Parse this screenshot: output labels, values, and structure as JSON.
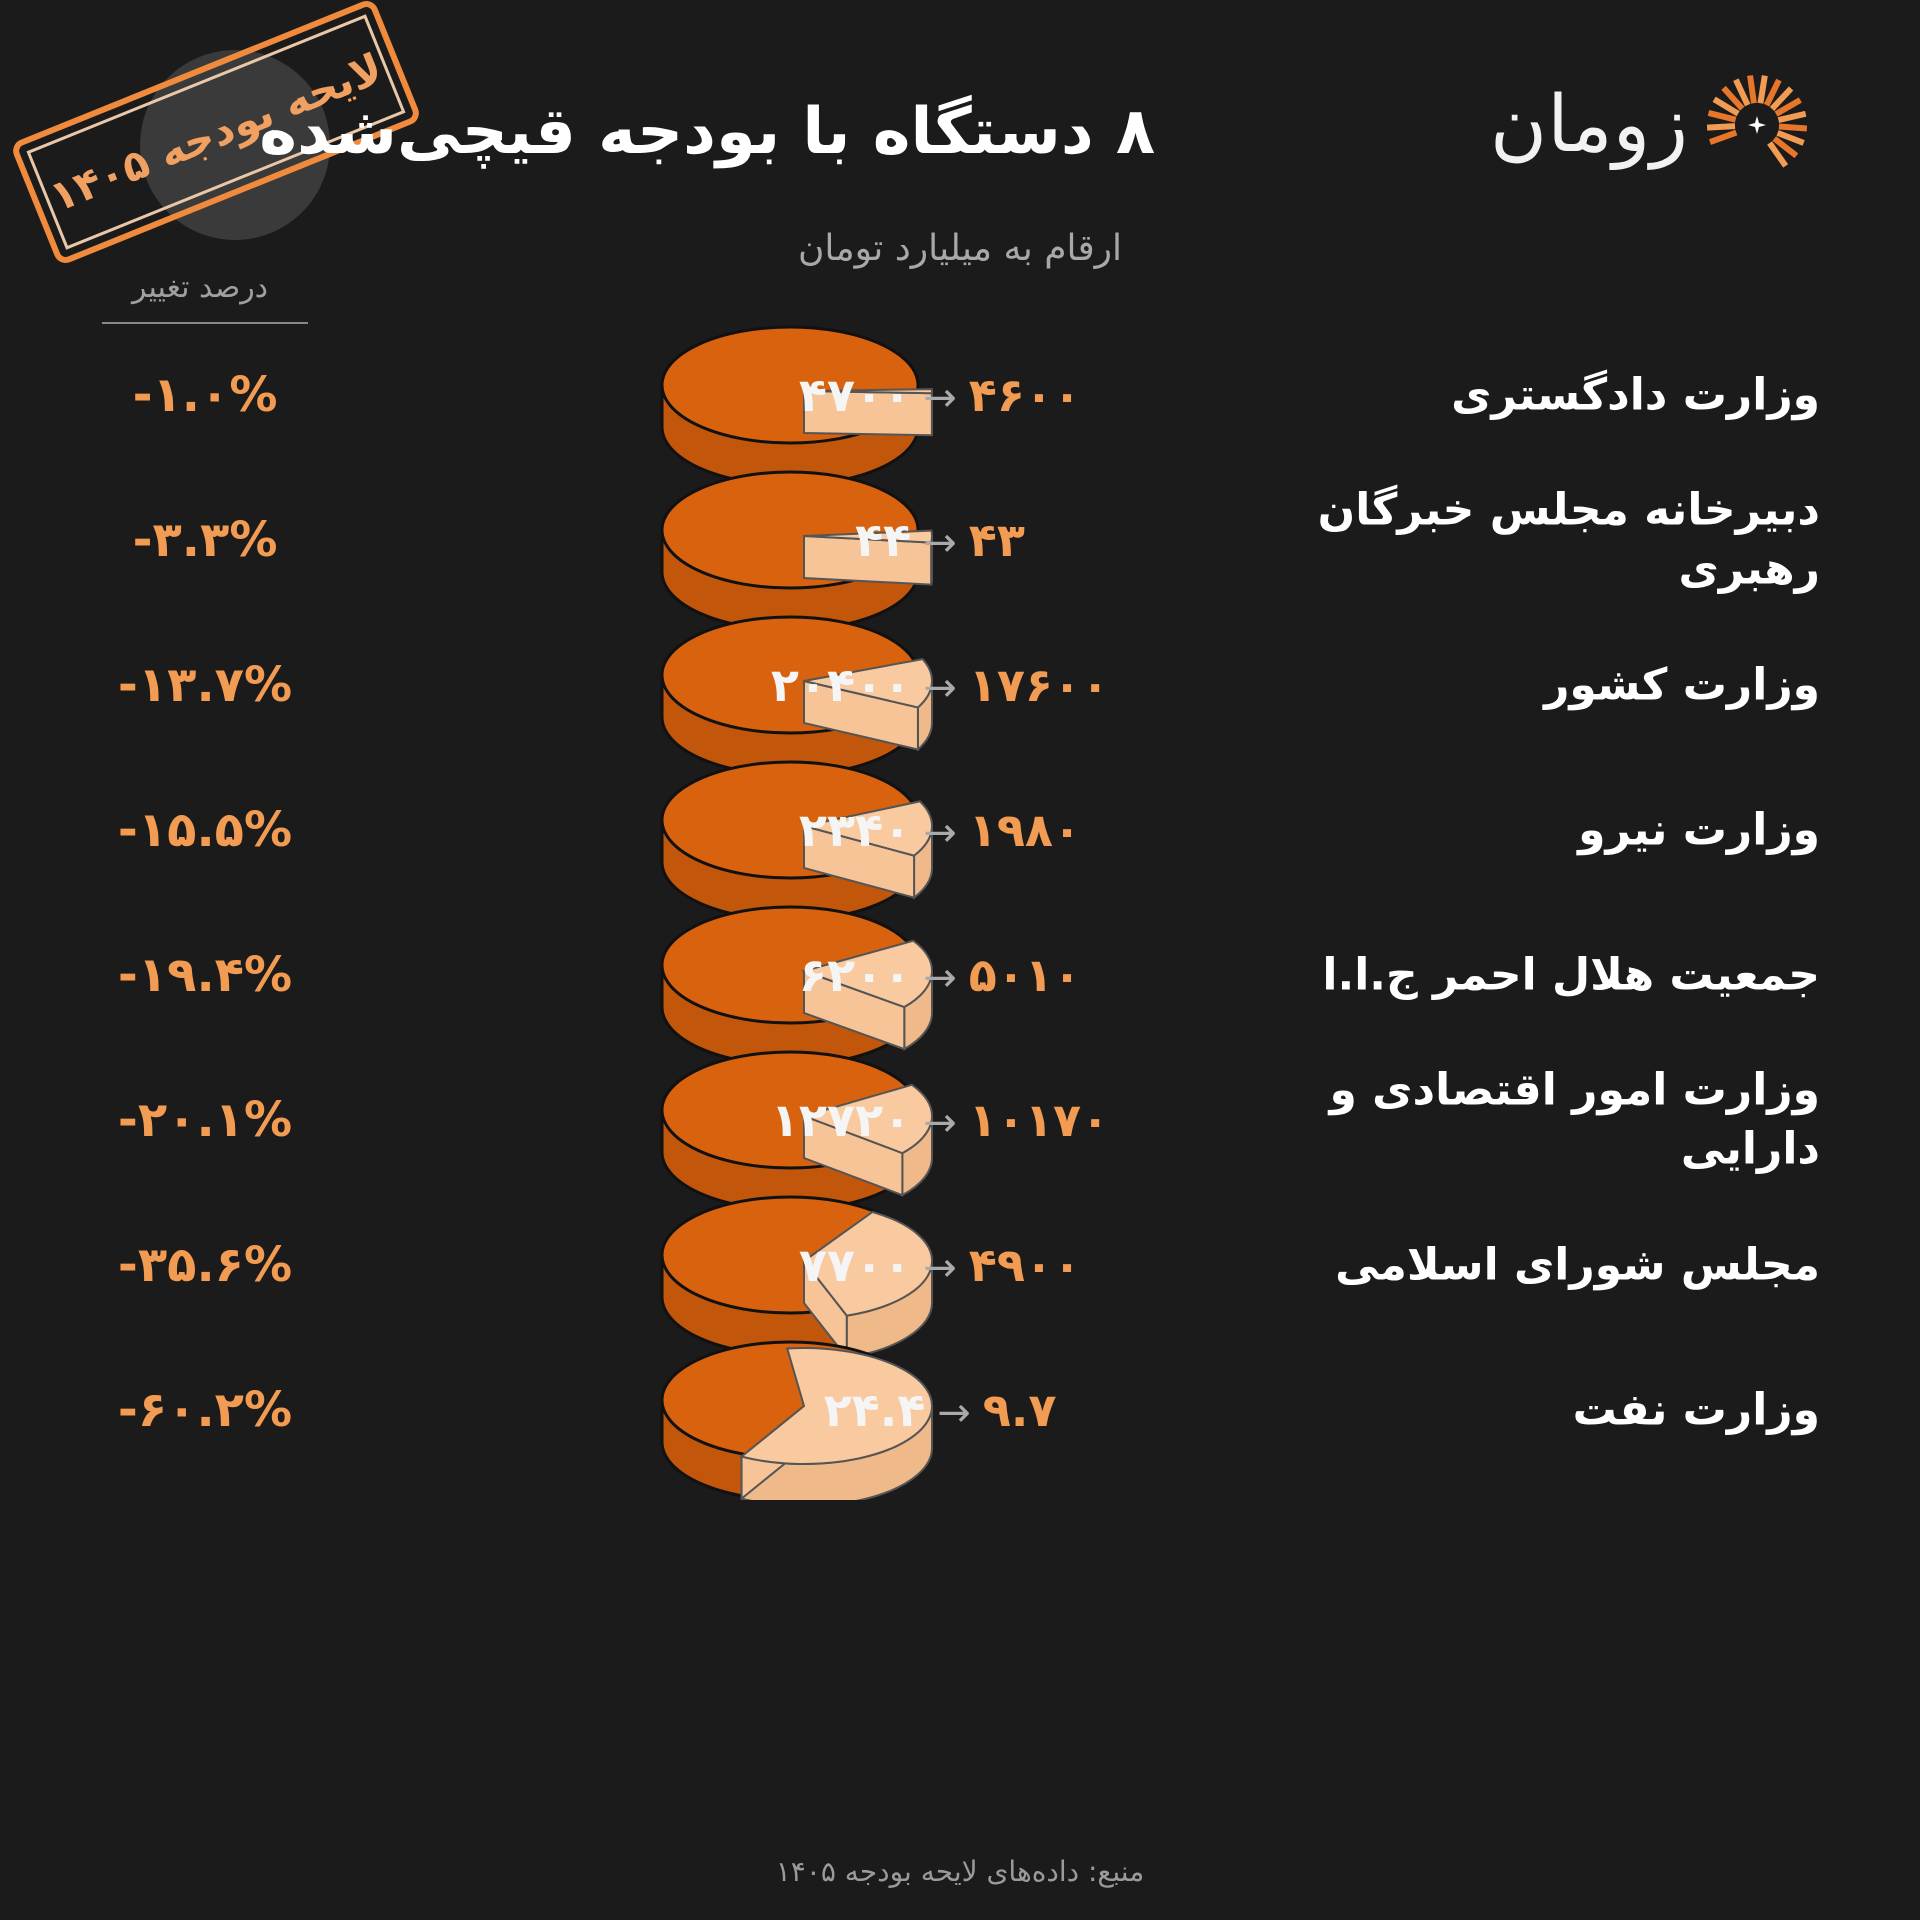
{
  "header": {
    "title": "۸ دستگاه با بودجه قیچی‌شده",
    "subtitle": "ارقام به میلیارد تومان",
    "logo_text": "زومان",
    "logo_icon": "sunburst-icon",
    "stamp_text": "لایحه بودجه ۱۴۰۵",
    "change_header": "درصد تغییر"
  },
  "colors": {
    "background": "#1b1b1b",
    "accent": "#f29b52",
    "pie_remaining": "#d9620f",
    "pie_cut": "#f9c9a0"
  },
  "rows": [
    {
      "name": "وزارت دادگستری",
      "old": "۴۷۰۰",
      "arrow": "→",
      "new": "۴۶۰۰",
      "change": "-۱.۰%"
    },
    {
      "name": "دبیرخانه مجلس خبرگان رهبری",
      "old": "۴۴",
      "arrow": "→",
      "new": "۴۳",
      "change": "-۳.۳%"
    },
    {
      "name": "وزارت کشور",
      "old": "۲۰۴۰۰",
      "arrow": "→",
      "new": "۱۷۶۰۰",
      "change": "-۱۳.۷%"
    },
    {
      "name": "وزارت نیرو",
      "old": "۲۳۴۰",
      "arrow": "→",
      "new": "۱۹۸۰",
      "change": "-۱۵.۵%"
    },
    {
      "name": "جمعیت هلال احمر ج.ا.ا",
      "old": "۶۲۰۰",
      "arrow": "→",
      "new": "۵۰۱۰",
      "change": "-۱۹.۴%"
    },
    {
      "name": "وزارت امور اقتصادی و دارایی",
      "old": "۱۲۷۲۰",
      "arrow": "→",
      "new": "۱۰۱۷۰",
      "change": "-۲۰.۱%"
    },
    {
      "name": "مجلس شورای اسلامی",
      "old": "۷۷۰۰",
      "arrow": "→",
      "new": "۴۹۰۰",
      "change": "-۳۵.۶%"
    },
    {
      "name": "وزارت نفت",
      "old": "۲۴.۴",
      "arrow": "→",
      "new": "۹.۷",
      "change": "-۶۰.۲%"
    }
  ],
  "chart_data": {
    "type": "pie",
    "title": "۸ دستگاه با بودجه قیچی‌شده",
    "subtitle": "ارقام به میلیارد تومان",
    "categories": [
      "وزارت دادگستری",
      "دبیرخانه مجلس خبرگان رهبری",
      "وزارت کشور",
      "وزارت نیرو",
      "جمعیت هلال احمر ج.ا.ا",
      "وزارت امور اقتصادی و دارایی",
      "مجلس شورای اسلامی",
      "وزارت نفت"
    ],
    "old_values": [
      4700,
      44,
      20400,
      2340,
      6200,
      12720,
      7700,
      24.4
    ],
    "new_values": [
      4600,
      43,
      17600,
      1980,
      5010,
      10170,
      4900,
      9.7
    ],
    "percent_change": [
      -1.0,
      -3.3,
      -13.7,
      -15.5,
      -19.4,
      -20.1,
      -35.6,
      -60.2
    ]
  },
  "footer": {
    "source": "منبع: داده‌های لایحه بودجه ۱۴۰۵"
  }
}
